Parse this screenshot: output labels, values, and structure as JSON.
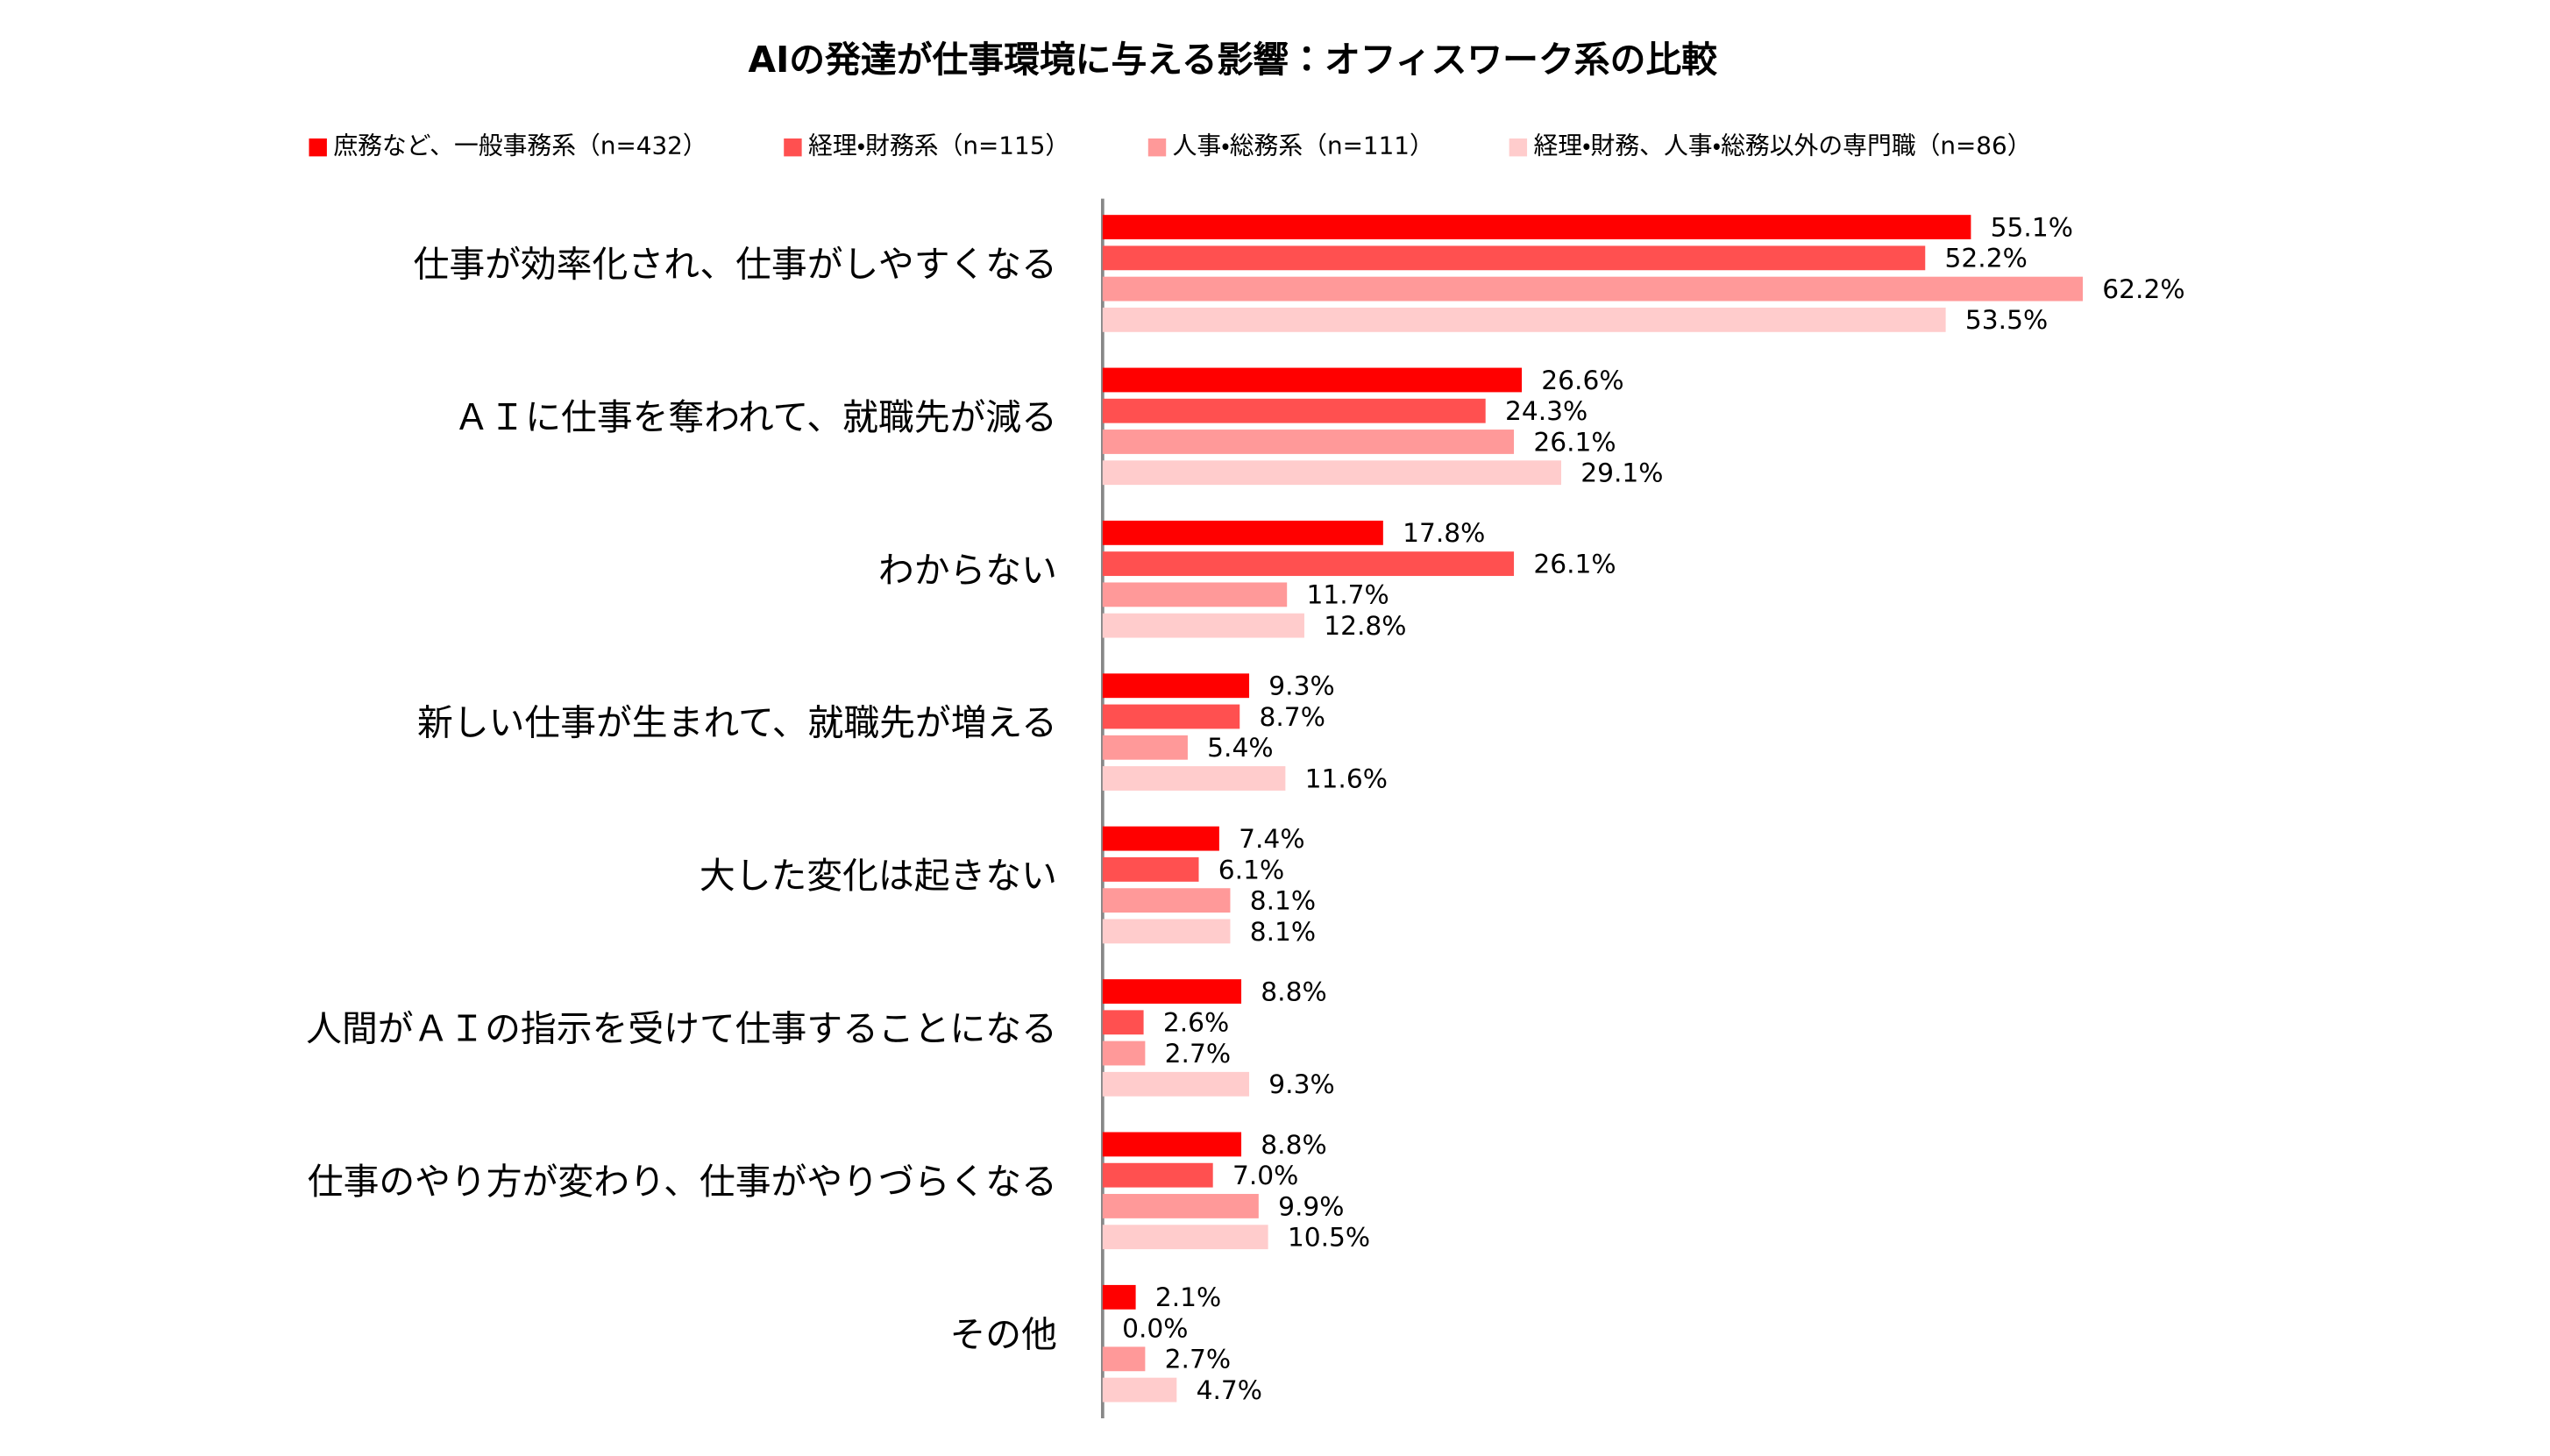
{
  "chart_data": {
    "type": "bar",
    "orientation": "horizontal",
    "title": "AIの発達が仕事環境に与える影響：オフィスワーク系の比較",
    "categories": [
      "仕事が効率化され、仕事がしやすくなる",
      "ＡＩに仕事を奪われて、就職先が減る",
      "わからない",
      "新しい仕事が生まれて、就職先が増える",
      "大した変化は起きない",
      "人間がＡＩの指示を受けて仕事することになる",
      "仕事のやり方が変わり、仕事がやりづらくなる",
      "その他"
    ],
    "series": [
      {
        "name": "庶務など、一般事務系（n=432）",
        "color": "#ff0000",
        "values": [
          55.1,
          26.6,
          17.8,
          9.3,
          7.4,
          8.8,
          8.8,
          2.1
        ],
        "value_labels": [
          "55.1%",
          "26.6%",
          "17.8%",
          "9.3%",
          "7.4%",
          "8.8%",
          "8.8%",
          "2.1%"
        ]
      },
      {
        "name": "経理・財務系（n=115）",
        "color": "#ff5050",
        "values": [
          52.2,
          24.3,
          26.1,
          8.7,
          6.1,
          2.6,
          7.0,
          0.0
        ],
        "value_labels": [
          "52.2%",
          "24.3%",
          "26.1%",
          "8.7%",
          "6.1%",
          "2.6%",
          "7.0%",
          "0.0%"
        ]
      },
      {
        "name": "人事・総務系（n=111）",
        "color": "#ff9999",
        "values": [
          62.2,
          26.1,
          11.7,
          5.4,
          8.1,
          2.7,
          9.9,
          2.7
        ],
        "value_labels": [
          "62.2%",
          "26.1%",
          "11.7%",
          "5.4%",
          "8.1%",
          "2.7%",
          "9.9%",
          "2.7%"
        ]
      },
      {
        "name": "経理・財務、人事・総務以外の専門職（n=86）",
        "color": "#ffcccc",
        "values": [
          53.5,
          29.1,
          12.8,
          11.6,
          8.1,
          9.3,
          10.5,
          4.7
        ],
        "value_labels": [
          "53.5%",
          "29.1%",
          "12.8%",
          "11.6%",
          "8.1%",
          "9.3%",
          "10.5%",
          "4.7%"
        ]
      }
    ],
    "legend": "top"
  }
}
